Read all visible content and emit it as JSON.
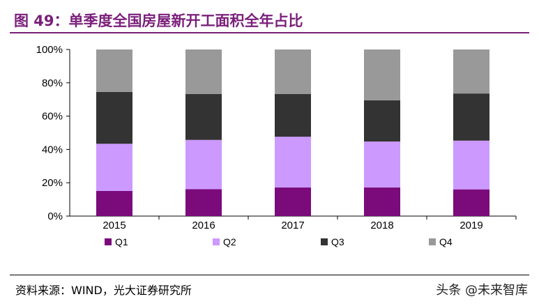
{
  "figure": {
    "title": "图 49：单季度全国房屋新开工面积全年占比",
    "source": "资料来源：WIND，光大证券研究所",
    "watermark": "头条 @未来智库"
  },
  "colors": {
    "title": "#7a1f7a",
    "Q1": "#7b0a7b",
    "Q2": "#cc99ff",
    "Q3": "#333333",
    "Q4": "#999999"
  },
  "chart_data": {
    "type": "bar",
    "stacked": true,
    "categories": [
      "2015",
      "2016",
      "2017",
      "2018",
      "2019"
    ],
    "series": [
      {
        "name": "Q1",
        "values": [
          16,
          17,
          18,
          18,
          17
        ]
      },
      {
        "name": "Q2",
        "values": [
          30,
          31,
          32,
          29,
          31
        ]
      },
      {
        "name": "Q3",
        "values": [
          33,
          29,
          27,
          26,
          30
        ]
      },
      {
        "name": "Q4",
        "values": [
          27,
          28,
          28,
          32,
          28
        ]
      }
    ],
    "ylim": [
      0,
      100
    ],
    "yticks": [
      "0%",
      "20%",
      "40%",
      "60%",
      "80%",
      "100%"
    ],
    "legend_position": "bottom",
    "grid": false
  }
}
